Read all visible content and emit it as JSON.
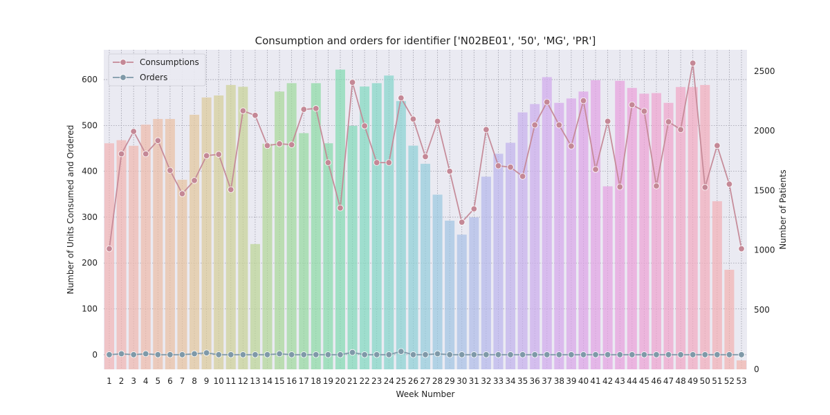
{
  "chart_data": {
    "type": "bar+line",
    "title": "Consumption and orders for identifier ['N02BE01', '50', 'MG', 'PR']",
    "xlabel": "Week Number",
    "ylabel_left": "Number of Units Consumed and Ordered",
    "ylabel_right": "Number of Patients",
    "categories": [
      "1",
      "2",
      "3",
      "4",
      "5",
      "6",
      "7",
      "8",
      "9",
      "10",
      "11",
      "12",
      "13",
      "14",
      "15",
      "16",
      "17",
      "18",
      "19",
      "20",
      "21",
      "22",
      "23",
      "24",
      "25",
      "26",
      "27",
      "28",
      "29",
      "30",
      "31",
      "32",
      "33",
      "34",
      "35",
      "36",
      "37",
      "38",
      "39",
      "40",
      "41",
      "42",
      "43",
      "44",
      "45",
      "46",
      "47",
      "48",
      "49",
      "50",
      "51",
      "52",
      "53"
    ],
    "ylim_left": [
      -32,
      665
    ],
    "yticks_left": [
      0,
      100,
      200,
      300,
      400,
      500,
      600
    ],
    "ylim_right": [
      0,
      2680
    ],
    "yticks_right": [
      0,
      500,
      1000,
      1500,
      2000,
      2500
    ],
    "grid": true,
    "legend": "top-left",
    "bar_series": {
      "name": "Number of Patients",
      "axis": "right",
      "values": [
        1896,
        1922,
        1875,
        2052,
        2100,
        2100,
        1590,
        2135,
        2280,
        2297,
        2385,
        2370,
        1051,
        1892,
        2330,
        2400,
        1981,
        2400,
        1896,
        2514,
        2043,
        2372,
        2400,
        2464,
        2250,
        1876,
        1724,
        1465,
        1247,
        1130,
        1275,
        1616,
        1808,
        1900,
        2155,
        2225,
        2451,
        2235,
        2272,
        2330,
        2425,
        1535,
        2420,
        2360,
        2312,
        2317,
        2235,
        2368,
        2368,
        2385,
        1410,
        835,
        75
      ],
      "colors": [
        "#f2b5b5",
        "#f1b6b1",
        "#f0b8ae",
        "#eebbaa",
        "#ecbea6",
        "#eac1a3",
        "#e7c4a0",
        "#e3c89d",
        "#ddcb9a",
        "#d6ce98",
        "#cfd197",
        "#c7d396",
        "#bdd596",
        "#b3d797",
        "#a9d899",
        "#9fd99c",
        "#96daa0",
        "#8edba5",
        "#88dbab",
        "#84dbb1",
        "#82dab8",
        "#82d9bf",
        "#83d7c5",
        "#86d5cb",
        "#8ad3d1",
        "#8fd0d6",
        "#95cddb",
        "#9bc9df",
        "#a2c5e2",
        "#a9c1e5",
        "#b0bde8",
        "#b6b9ea",
        "#bcb6eb",
        "#c2b3ec",
        "#c7b0ec",
        "#ccadec",
        "#d1aaeb",
        "#d6a8ea",
        "#daa6e8",
        "#dea4e6",
        "#e2a3e3",
        "#e5a2e0",
        "#e8a1dc",
        "#eba1d8",
        "#eda2d4",
        "#efa3cf",
        "#f0a5ca",
        "#f1a7c5",
        "#f2aac0",
        "#f2adbb",
        "#f2b0b6",
        "#f2b3b1",
        "#f2b6ad"
      ]
    },
    "series": [
      {
        "name": "Consumptions",
        "axis": "left",
        "color": "#c48896",
        "values": [
          231,
          438,
          487,
          438,
          467,
          402,
          351,
          380,
          434,
          437,
          360,
          532,
          522,
          456,
          460,
          458,
          535,
          537,
          419,
          320,
          594,
          499,
          419,
          419,
          560,
          514,
          432,
          509,
          400,
          289,
          318,
          491,
          412,
          409,
          389,
          501,
          551,
          501,
          455,
          554,
          404,
          509,
          366,
          545,
          531,
          368,
          508,
          491,
          636,
          365,
          456,
          372,
          231
        ]
      },
      {
        "name": "Orders",
        "axis": "left",
        "color": "#7f99a8",
        "values": [
          0,
          2,
          0,
          2,
          0,
          0,
          0,
          2,
          4,
          0,
          0,
          0,
          0,
          0,
          2,
          0,
          0,
          0,
          0,
          0,
          5,
          0,
          0,
          0,
          7,
          0,
          0,
          2,
          0,
          0,
          0,
          0,
          0,
          0,
          0,
          0,
          0,
          0,
          0,
          0,
          0,
          0,
          0,
          0,
          0,
          0,
          0,
          0,
          0,
          0,
          0,
          0,
          0
        ]
      }
    ]
  }
}
